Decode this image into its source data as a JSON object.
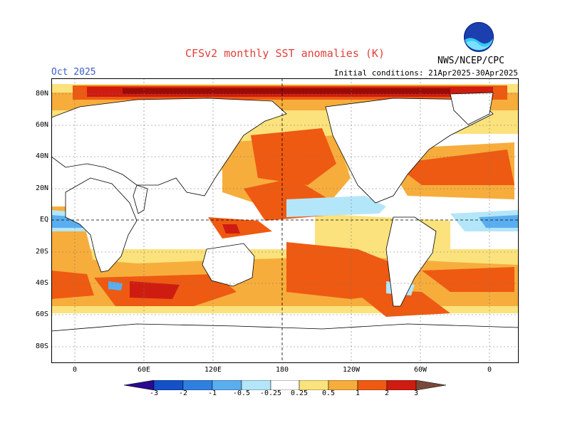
{
  "header": {
    "title": "CFSv2 monthly SST anomalies (K)",
    "month": "Oct 2025",
    "initial_conditions": "Initial conditions: 21Apr2025-30Apr2025",
    "agency": "NWS/NCEP/CPC",
    "logo_text": "NOAA"
  },
  "map": {
    "lat_labels": [
      "80N",
      "60N",
      "40N",
      "20N",
      "EQ",
      "20S",
      "40S",
      "60S",
      "80S"
    ],
    "lon_labels": [
      "0",
      "60E",
      "120E",
      "180",
      "120W",
      "60W",
      "0"
    ],
    "dashed_reference_lines": [
      "EQ",
      "180"
    ]
  },
  "legend": {
    "tick_labels": [
      "-3",
      "-2",
      "-1",
      "-0.5",
      "-0.25",
      "0.25",
      "0.5",
      "1",
      "2",
      "3"
    ],
    "colors": [
      "#2a0a8f",
      "#1450c8",
      "#2f7fe0",
      "#5aaef0",
      "#b4e6fa",
      "#ffffff",
      "#fbe27c",
      "#f7ad3c",
      "#ee5a12",
      "#cf1c10",
      "#9a0a06",
      "#7a4838"
    ]
  },
  "colors": {
    "land": "#ffffff",
    "strong_warm": "#ee5a12",
    "moderate_warm": "#f7ad3c",
    "weak_warm": "#fbe27c",
    "cool": "#5aaef0",
    "weak_cool": "#b4e6fa",
    "title_color": "#e0403a",
    "month_color": "#3a5ecf"
  }
}
